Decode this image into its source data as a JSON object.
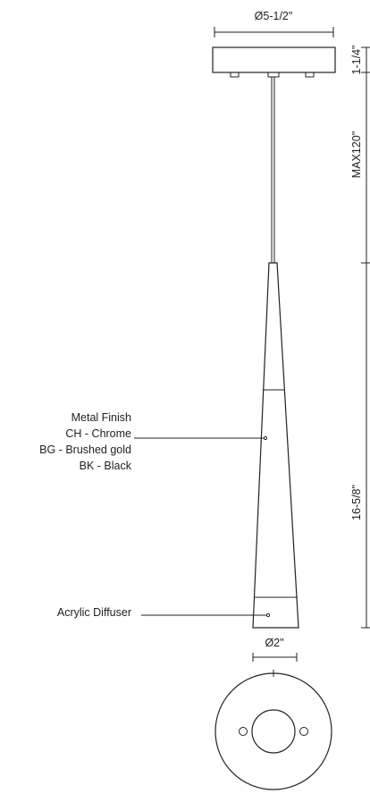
{
  "dimensions": {
    "canopy_diameter": "Ø5-1/2\"",
    "canopy_height": "1-1/4\"",
    "cable_length": "MAX120\"",
    "fixture_height": "16-5/8\"",
    "shade_diameter": "Ø2\""
  },
  "callouts": {
    "metal_finish": {
      "title": "Metal Finish",
      "options": [
        "CH - Chrome",
        "BG - Brushed gold",
        "BK - Black"
      ]
    },
    "diffuser": "Acrylic Diffuser"
  }
}
